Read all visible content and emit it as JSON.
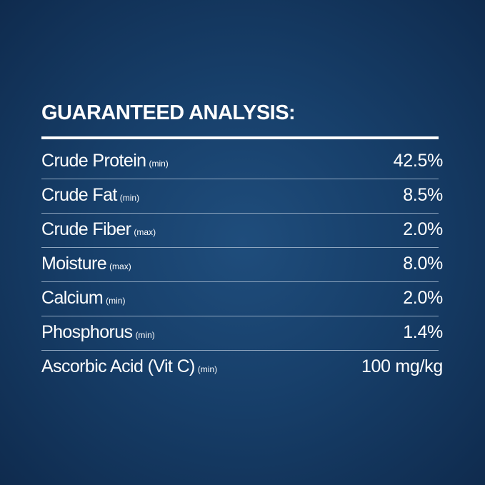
{
  "title": "GUARANTEED ANALYSIS:",
  "table": {
    "rows": [
      [
        "Crude Protein",
        "(min)",
        "42.5%"
      ],
      [
        "Crude Fat",
        "(min)",
        "8.5%"
      ],
      [
        "Crude Fiber",
        "(max)",
        "2.0%"
      ],
      [
        "Moisture",
        "(max)",
        "8.0%"
      ],
      [
        "Calcium",
        "(min)",
        "2.0%"
      ],
      [
        "Phosphorus",
        "(min)",
        "1.4%"
      ],
      [
        "Ascorbic Acid (Vit C)",
        "(min)",
        "100 mg/kg"
      ]
    ]
  }
}
